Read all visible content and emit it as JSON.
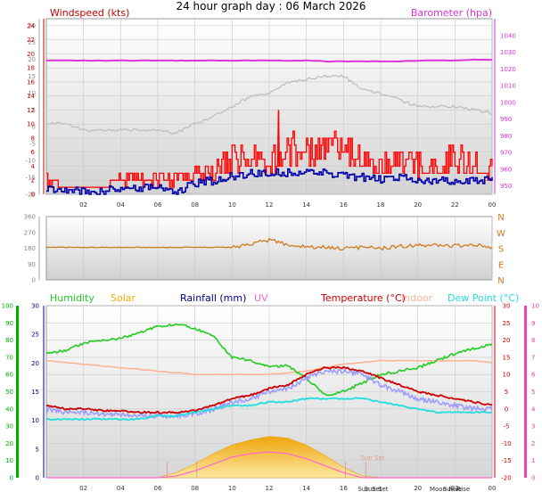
{
  "title": "24 hour graph day : 06 March 2026",
  "colors": {
    "wind": "#ff0000",
    "gust_fill": "#ff0000",
    "avg": "#0000aa",
    "baro": "#dd33dd",
    "direction": "#d07a20",
    "humidity": "#22cc22",
    "solar": "#f5b000",
    "rain": "#000088",
    "uv": "#ff66cc",
    "temperature": "#cc0000",
    "indoor": "#ffb090",
    "dew": "#22dddd",
    "chill": "#9999ff",
    "axis_left_green": "#00b000",
    "axis_pink": "#ee44aa"
  },
  "chart_data": [
    {
      "type": "line",
      "panel": "wind_baro",
      "legend_left": "Windspeed (kts)",
      "legend_right": "Barometer (hpa)",
      "x_ticks": [
        "02",
        "04",
        "06",
        "08",
        "10",
        "12",
        "14",
        "16",
        "18",
        "20",
        "22",
        "00"
      ],
      "outer_left_ticks": [
        "30",
        "25",
        "20",
        "15",
        "10",
        "5",
        "0",
        "-5",
        "-10",
        "-15",
        "-20"
      ],
      "wind_axis_ticks": [
        "24",
        "22",
        "20",
        "18",
        "16",
        "14",
        "12",
        "10",
        "8",
        "6",
        "4",
        "2",
        "0"
      ],
      "baro_axis_ticks": [
        "1040",
        "1030",
        "1020",
        "1010",
        "1000",
        "990",
        "980",
        "970",
        "960",
        "950"
      ],
      "ylim_wind": [
        0,
        25
      ],
      "ylim_baro": [
        945,
        1050
      ],
      "ylim_outer": [
        -20,
        32
      ],
      "x": [
        0,
        1,
        2,
        3,
        4,
        5,
        6,
        7,
        8,
        9,
        10,
        11,
        12,
        13,
        14,
        15,
        16,
        17,
        18,
        19,
        20,
        21,
        22,
        23,
        24
      ],
      "series": [
        {
          "name": "Barometer (hpa)",
          "key": "baro",
          "axis": "baro",
          "values": [
            1025,
            1025,
            1025,
            1025,
            1025,
            1025,
            1025,
            1025,
            1025,
            1025,
            1025,
            1025,
            1025,
            1025,
            1025,
            1024.5,
            1024.5,
            1024.5,
            1024.5,
            1024.5,
            1025,
            1025,
            1025,
            1025.5,
            1025.5
          ]
        },
        {
          "name": "Windspeed gust (kts)",
          "key": "gust",
          "axis": "wind",
          "values": [
            2,
            1,
            1,
            1,
            2,
            2,
            2,
            2,
            3,
            3,
            5,
            5,
            4,
            6,
            6,
            6,
            6,
            5,
            4,
            5,
            4,
            4,
            5,
            4,
            4
          ]
        },
        {
          "name": "Windspeed avg (kts)",
          "key": "avg",
          "axis": "wind",
          "values": [
            1,
            0.5,
            0.5,
            0.5,
            1,
            1,
            1,
            0.5,
            1.5,
            2,
            2.5,
            3,
            3,
            3,
            3,
            3,
            2.5,
            2.5,
            2,
            2.5,
            2,
            2,
            2,
            2,
            2
          ]
        },
        {
          "name": "Wind chill trace",
          "key": "grey",
          "axis": "outer",
          "values": [
            1,
            1,
            -1,
            -1,
            -1,
            -1,
            -1,
            -2,
            1,
            3,
            6,
            9,
            10,
            13,
            14,
            15,
            15,
            11,
            10,
            8,
            6,
            6,
            6,
            5,
            4
          ]
        }
      ],
      "peak_gust": {
        "x": 12.5,
        "y": 12
      }
    },
    {
      "type": "line",
      "panel": "direction",
      "left_ticks": [
        "360",
        "270",
        "180",
        "90",
        "0"
      ],
      "right_labels": [
        "N",
        "W",
        "S",
        "E",
        "N"
      ],
      "ylim": [
        0,
        360
      ],
      "x": [
        0,
        2,
        4,
        6,
        8,
        10,
        11,
        12,
        13,
        14,
        15,
        16,
        17,
        18,
        19,
        20,
        21,
        22,
        23,
        24
      ],
      "series": [
        {
          "name": "Wind direction",
          "key": "direction",
          "values": [
            185,
            185,
            185,
            185,
            185,
            185,
            205,
            225,
            200,
            190,
            185,
            175,
            185,
            180,
            190,
            195,
            195,
            195,
            200,
            180
          ]
        }
      ]
    },
    {
      "type": "line",
      "panel": "temp_hum",
      "legend": [
        "Humidity",
        "Solar",
        "Rainfall (mm)",
        "UV",
        "Temperature (°C)",
        "Indoor",
        "Dew Point (°C)"
      ],
      "x_ticks": [
        "02",
        "04",
        "06",
        "08",
        "10",
        "12",
        "14",
        "16",
        "20",
        "22",
        "00"
      ],
      "x_tick_hours": [
        2,
        4,
        6,
        8,
        10,
        12,
        14,
        16,
        20,
        22,
        24
      ],
      "humidity_axis_ticks": [
        "100",
        "90",
        "80",
        "70",
        "60",
        "50",
        "40",
        "30",
        "20",
        "10",
        "0"
      ],
      "rain_axis_ticks": [
        "30",
        "25",
        "20",
        "15",
        "10",
        "5",
        "0"
      ],
      "temp_axis_ticks": [
        "30",
        "25",
        "20",
        "15",
        "10",
        "5",
        "0",
        "-5",
        "-10",
        "-15",
        "-20"
      ],
      "uv_axis_ticks": [
        "10",
        "9",
        "8",
        "7",
        "6",
        "5",
        "4",
        "3",
        "2",
        "1",
        "0"
      ],
      "ylim_humidity": [
        0,
        100
      ],
      "ylim_temp": [
        -20,
        30
      ],
      "sun_labels": [
        "Sun Set",
        "Sun Set",
        "Moon Rise",
        "Sun Rise"
      ],
      "x": [
        0,
        1,
        2,
        3,
        4,
        5,
        6,
        7,
        8,
        9,
        10,
        11,
        12,
        13,
        14,
        15,
        16,
        17,
        18,
        19,
        20,
        21,
        22,
        23,
        24
      ],
      "series": [
        {
          "name": "Humidity",
          "key": "humidity",
          "axis": "humidity",
          "values": [
            72,
            74,
            78,
            80,
            81,
            84,
            88,
            89,
            87,
            82,
            70,
            68,
            65,
            65,
            58,
            48,
            50,
            55,
            60,
            62,
            64,
            68,
            72,
            75,
            78
          ]
        },
        {
          "name": "Temperature (°C)",
          "key": "temperature",
          "axis": "temp",
          "values": [
            1,
            0,
            0,
            -0.5,
            -0.5,
            -1,
            -1,
            -1,
            -0.5,
            1,
            3,
            4,
            6,
            7,
            10,
            12,
            12,
            11,
            9,
            7,
            5,
            4,
            3,
            2,
            1
          ]
        },
        {
          "name": "Wind chill",
          "key": "chill",
          "axis": "temp",
          "values": [
            0,
            -1,
            -1,
            -1.5,
            -1.5,
            -2,
            -2,
            -2,
            -1.5,
            0,
            2,
            3,
            5,
            6,
            9,
            11,
            11,
            10,
            7,
            5,
            3,
            2,
            1,
            0,
            0
          ]
        },
        {
          "name": "Dew Point (°C)",
          "key": "dew",
          "axis": "temp",
          "values": [
            -3,
            -3,
            -3,
            -3,
            -3,
            -3,
            -2,
            -2,
            -1,
            0,
            1,
            1,
            2,
            2,
            3,
            3,
            3,
            3,
            2,
            1,
            0,
            -1,
            -1,
            -1,
            -1
          ]
        },
        {
          "name": "Indoor",
          "key": "indoor",
          "axis": "temp",
          "values": [
            14,
            13.5,
            13,
            12.5,
            12,
            11.5,
            11,
            10.5,
            10,
            10,
            10,
            10,
            10,
            10.5,
            11,
            12,
            13,
            13.5,
            14,
            14,
            14,
            14,
            14,
            14,
            13.5
          ]
        },
        {
          "name": "Solar",
          "key": "solar",
          "axis": "humidity",
          "values": [
            0,
            0,
            0,
            0,
            0,
            0,
            0,
            3,
            8,
            14,
            19,
            22,
            24,
            23,
            19,
            13,
            6,
            1,
            0,
            0,
            0,
            0,
            0,
            0,
            0
          ]
        },
        {
          "name": "UV",
          "key": "uv",
          "axis": "humidity",
          "values": [
            0,
            0,
            0,
            0,
            0,
            0,
            0,
            1,
            4,
            8,
            12,
            14,
            15,
            14,
            11,
            7,
            3,
            0,
            0,
            0,
            0,
            0,
            0,
            0,
            0
          ]
        }
      ]
    }
  ]
}
